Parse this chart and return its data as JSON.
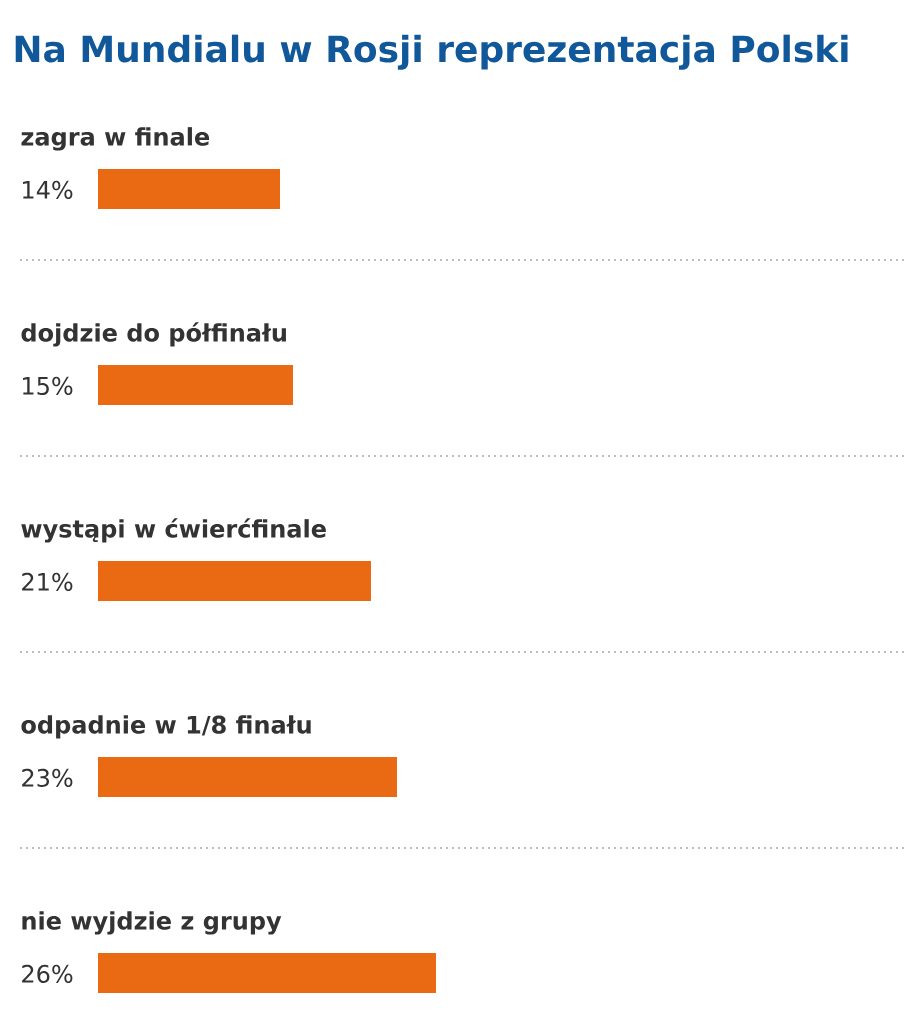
{
  "chart_data": {
    "type": "bar",
    "title": "Na Mundialu w Rosji reprezentacja Polski",
    "orientation": "horizontal",
    "categories": [
      "zagra w finale",
      "dojdzie do półfinału",
      "wystąpi w ćwierćfinale",
      "odpadnie w 1/8 finału",
      "nie wyjdzie z grupy"
    ],
    "values": [
      14,
      15,
      21,
      23,
      26
    ],
    "value_labels": [
      "14%",
      "15%",
      "21%",
      "23%",
      "26%"
    ],
    "color": "#e96a13"
  }
}
